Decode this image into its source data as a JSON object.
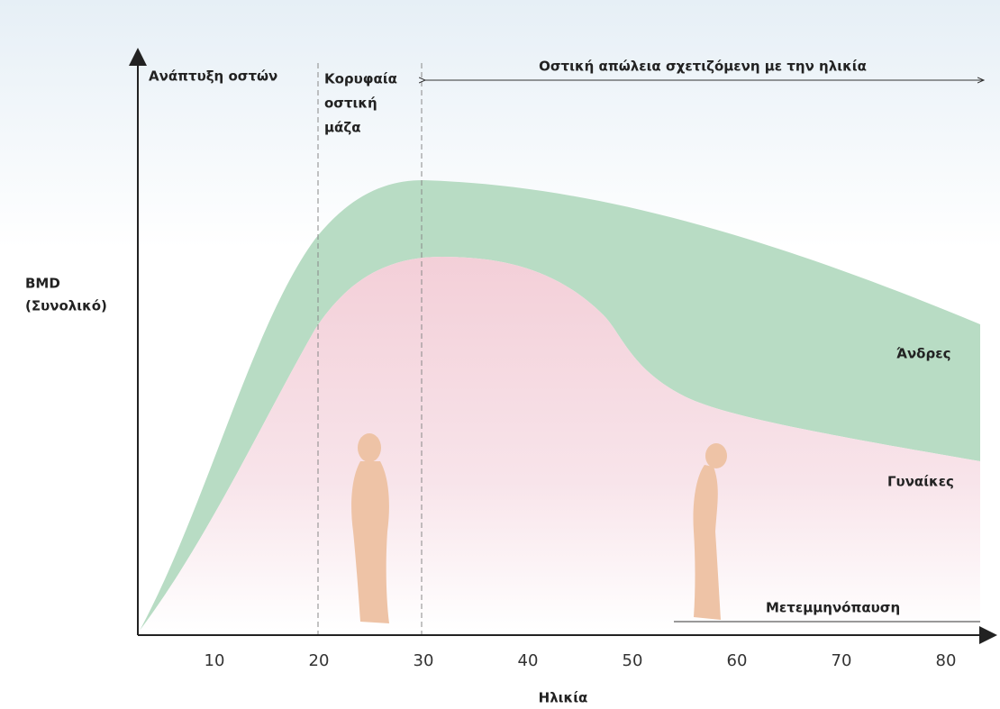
{
  "phases": {
    "development": "Ανάπτυξη οστών",
    "peak": [
      "Κορυφαία",
      "οστική",
      "μάζα"
    ],
    "loss": "Οστική απώλεια σχετιζόμενη με την ηλικία"
  },
  "axis": {
    "y_label": [
      "BMD",
      "(Συνολικό)"
    ],
    "x_label": "Ηλικία",
    "x_ticks": [
      10,
      20,
      30,
      40,
      50,
      60,
      70,
      80
    ]
  },
  "groups": {
    "men": "Άνδρες",
    "women": "Γυναίκες"
  },
  "postmenopause": "Μετεμμηνόπαυση"
}
